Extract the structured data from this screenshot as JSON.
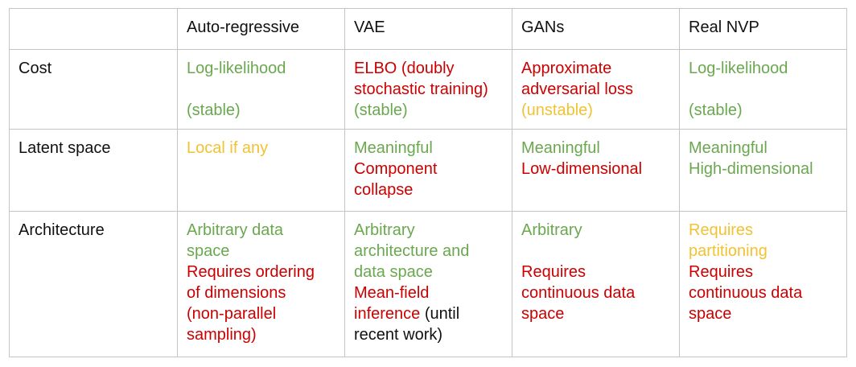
{
  "table": {
    "header": [
      "",
      "Auto-regressive",
      "VAE",
      "GANs",
      "Real NVP"
    ],
    "rows": [
      {
        "label": "Cost",
        "cells": [
          [
            {
              "lines": [
                "Log-likelihood",
                "",
                "(stable)"
              ],
              "color": "green"
            }
          ],
          [
            {
              "lines": [
                "ELBO (doubly",
                "stochastic training)"
              ],
              "color": "red"
            },
            {
              "lines": [
                "(stable)"
              ],
              "color": "green"
            }
          ],
          [
            {
              "lines": [
                "Approximate",
                "adversarial loss"
              ],
              "color": "red"
            },
            {
              "lines": [
                "(unstable)"
              ],
              "color": "amber"
            }
          ],
          [
            {
              "lines": [
                "Log-likelihood",
                "",
                "(stable)"
              ],
              "color": "green"
            }
          ]
        ]
      },
      {
        "label": "Latent space",
        "cells": [
          [
            {
              "lines": [
                "Local if any"
              ],
              "color": "amber"
            }
          ],
          [
            {
              "lines": [
                "Meaningful"
              ],
              "color": "green"
            },
            {
              "lines": [
                "Component",
                "collapse"
              ],
              "color": "red"
            }
          ],
          [
            {
              "lines": [
                "Meaningful"
              ],
              "color": "green"
            },
            {
              "lines": [
                "Low-dimensional"
              ],
              "color": "red"
            }
          ],
          [
            {
              "lines": [
                "Meaningful",
                "High-dimensional"
              ],
              "color": "green"
            }
          ]
        ]
      },
      {
        "label": "Architecture",
        "cells": [
          [
            {
              "lines": [
                "Arbitrary data",
                "space"
              ],
              "color": "green"
            },
            {
              "lines": [
                "Requires ordering",
                "of dimensions",
                "(non-parallel",
                "sampling)"
              ],
              "color": "red"
            }
          ],
          [
            {
              "lines": [
                "Arbitrary",
                "architecture and",
                "data space"
              ],
              "color": "green"
            },
            {
              "lines": [
                "Mean-field",
                "inference"
              ],
              "color": "red",
              "suffix": " (until",
              "suffix_color": "black"
            },
            {
              "lines": [
                "recent work)"
              ],
              "color": "black"
            }
          ],
          [
            {
              "lines": [
                "Arbitrary",
                ""
              ],
              "color": "green"
            },
            {
              "lines": [
                "Requires",
                "continuous data",
                "space"
              ],
              "color": "red"
            }
          ],
          [
            {
              "lines": [
                "Requires",
                "partitioning"
              ],
              "color": "amber"
            },
            {
              "lines": [
                "Requires",
                "continuous data",
                "space"
              ],
              "color": "red"
            }
          ]
        ]
      }
    ]
  },
  "colors": {
    "green": "#6aa84f",
    "red": "#cc0000",
    "amber": "#f1c232",
    "black": "#111111",
    "border": "#c4c4c4"
  }
}
